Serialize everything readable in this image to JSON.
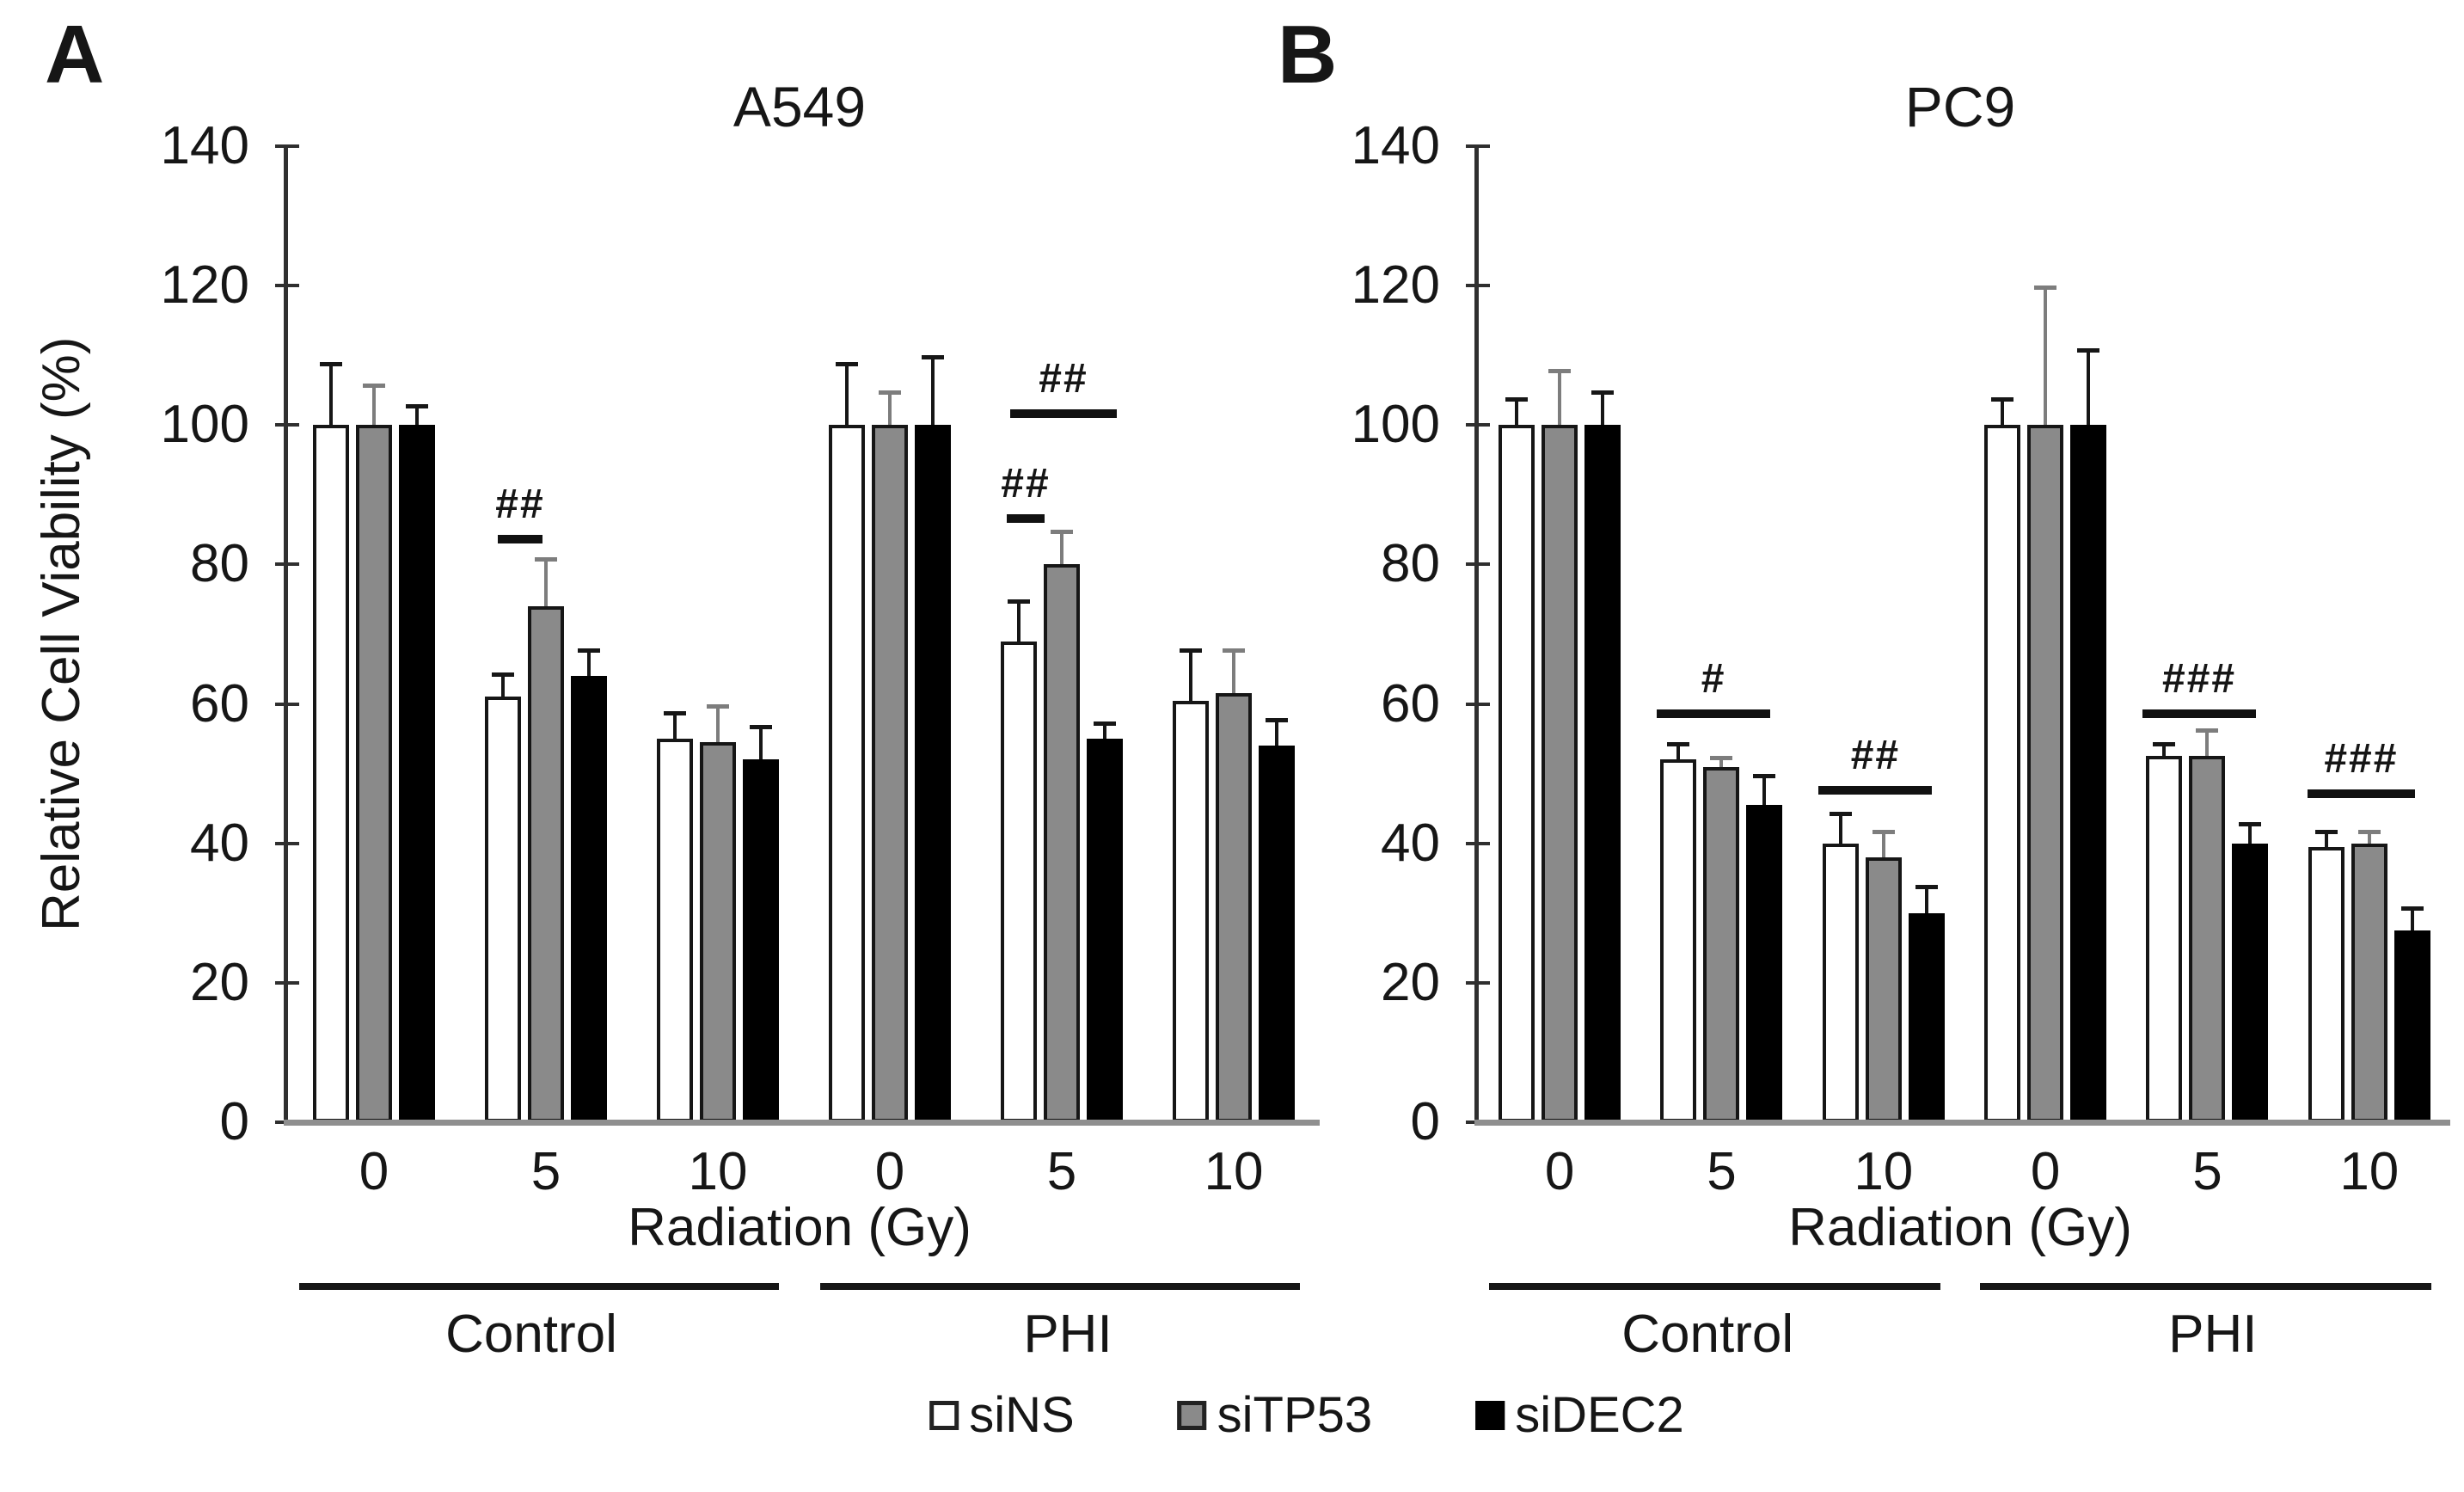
{
  "figure": {
    "kind": "two-panel grouped bar figure with error bars",
    "background": "#ffffff",
    "colors": {
      "bar_siNS": "#ffffff",
      "bar_siTP53": "#8a8a8a",
      "bar_siDEC2": "#000000",
      "bar_border": "#161616",
      "axis": "#2f2f2f",
      "baseline": "#8f8f8f",
      "error_bar_dark": "#161616",
      "error_bar_gray": "#7d7d7d"
    }
  },
  "legend": {
    "position": "bottom-center",
    "items": [
      {
        "label": "siNS",
        "swatch": "white-square"
      },
      {
        "label": "siTP53",
        "swatch": "gray-square"
      },
      {
        "label": "siDEC2",
        "swatch": "black-square"
      }
    ]
  },
  "chart_data": [
    {
      "type": "bar",
      "panel_letter": "A",
      "title": "A549",
      "ylabel": "Relative Cell Viability (%)",
      "xlabel": "Radiation (Gy)",
      "ylim": [
        0,
        140
      ],
      "yticks": [
        0,
        20,
        40,
        60,
        80,
        100,
        120,
        140
      ],
      "grid": "off",
      "series_names": [
        "siNS",
        "siTP53",
        "siDEC2"
      ],
      "sections": [
        {
          "label": "Control",
          "categories": [
            "0",
            "5",
            "10"
          ],
          "series": [
            {
              "name": "siNS",
              "values": [
                100,
                61,
                55
              ],
              "errors": [
                9,
                3.5,
                4
              ]
            },
            {
              "name": "siTP53",
              "values": [
                100,
                74,
                54.5
              ],
              "errors": [
                6,
                7,
                5.5
              ]
            },
            {
              "name": "siDEC2",
              "values": [
                100,
                64,
                52
              ],
              "errors": [
                3,
                4,
                5
              ]
            }
          ]
        },
        {
          "label": "PHI",
          "categories": [
            "0",
            "5",
            "10"
          ],
          "series": [
            {
              "name": "siNS",
              "values": [
                100,
                69,
                60.5
              ],
              "errors": [
                9,
                6,
                7.5
              ]
            },
            {
              "name": "siTP53",
              "values": [
                100,
                80,
                61.5
              ],
              "errors": [
                5,
                5,
                6.5
              ]
            },
            {
              "name": "siDEC2",
              "values": [
                100,
                55,
                54
              ],
              "errors": [
                10,
                2.5,
                4
              ]
            }
          ]
        }
      ],
      "annotations": [
        {
          "section": 0,
          "dose_index": 1,
          "label": "##",
          "level": 83,
          "from": 0.22,
          "to": 0.48
        },
        {
          "section": 1,
          "dose_index": 1,
          "label": "##",
          "level": 86,
          "from": 0.18,
          "to": 0.4
        },
        {
          "section": 1,
          "dose_index": 1,
          "label": "##",
          "level": 101,
          "from": 0.2,
          "to": 0.82
        }
      ]
    },
    {
      "type": "bar",
      "panel_letter": "B",
      "title": "PC9",
      "xlabel": "Radiation (Gy)",
      "ylim": [
        0,
        140
      ],
      "yticks": [
        0,
        20,
        40,
        60,
        80,
        100,
        120,
        140
      ],
      "grid": "off",
      "series_names": [
        "siNS",
        "siTP53",
        "siDEC2"
      ],
      "sections": [
        {
          "label": "Control",
          "categories": [
            "0",
            "5",
            "10"
          ],
          "series": [
            {
              "name": "siNS",
              "values": [
                100,
                52,
                40
              ],
              "errors": [
                4,
                2.5,
                4.5
              ]
            },
            {
              "name": "siTP53",
              "values": [
                100,
                51,
                38
              ],
              "errors": [
                8,
                1.5,
                4
              ]
            },
            {
              "name": "siDEC2",
              "values": [
                100,
                45.5,
                30
              ],
              "errors": [
                5,
                4.5,
                4
              ]
            }
          ]
        },
        {
          "label": "PHI",
          "categories": [
            "0",
            "5",
            "10"
          ],
          "series": [
            {
              "name": "siNS",
              "values": [
                100,
                52.5,
                39.5
              ],
              "errors": [
                4,
                2,
                2.5
              ]
            },
            {
              "name": "siTP53",
              "values": [
                100,
                52.5,
                40
              ],
              "errors": [
                20,
                4,
                2
              ]
            },
            {
              "name": "siDEC2",
              "values": [
                100,
                40,
                27.5
              ],
              "errors": [
                11,
                3,
                3.5
              ]
            }
          ]
        }
      ],
      "annotations": [
        {
          "section": 0,
          "dose_index": 1,
          "label": "#",
          "level": 58,
          "from": 0.1,
          "to": 0.8
        },
        {
          "section": 0,
          "dose_index": 2,
          "label": "##",
          "level": 47,
          "from": 0.1,
          "to": 0.8
        },
        {
          "section": 1,
          "dose_index": 1,
          "label": "###",
          "level": 58,
          "from": 0.1,
          "to": 0.8
        },
        {
          "section": 1,
          "dose_index": 2,
          "label": "###",
          "level": 46.5,
          "from": 0.12,
          "to": 0.78
        }
      ]
    }
  ]
}
